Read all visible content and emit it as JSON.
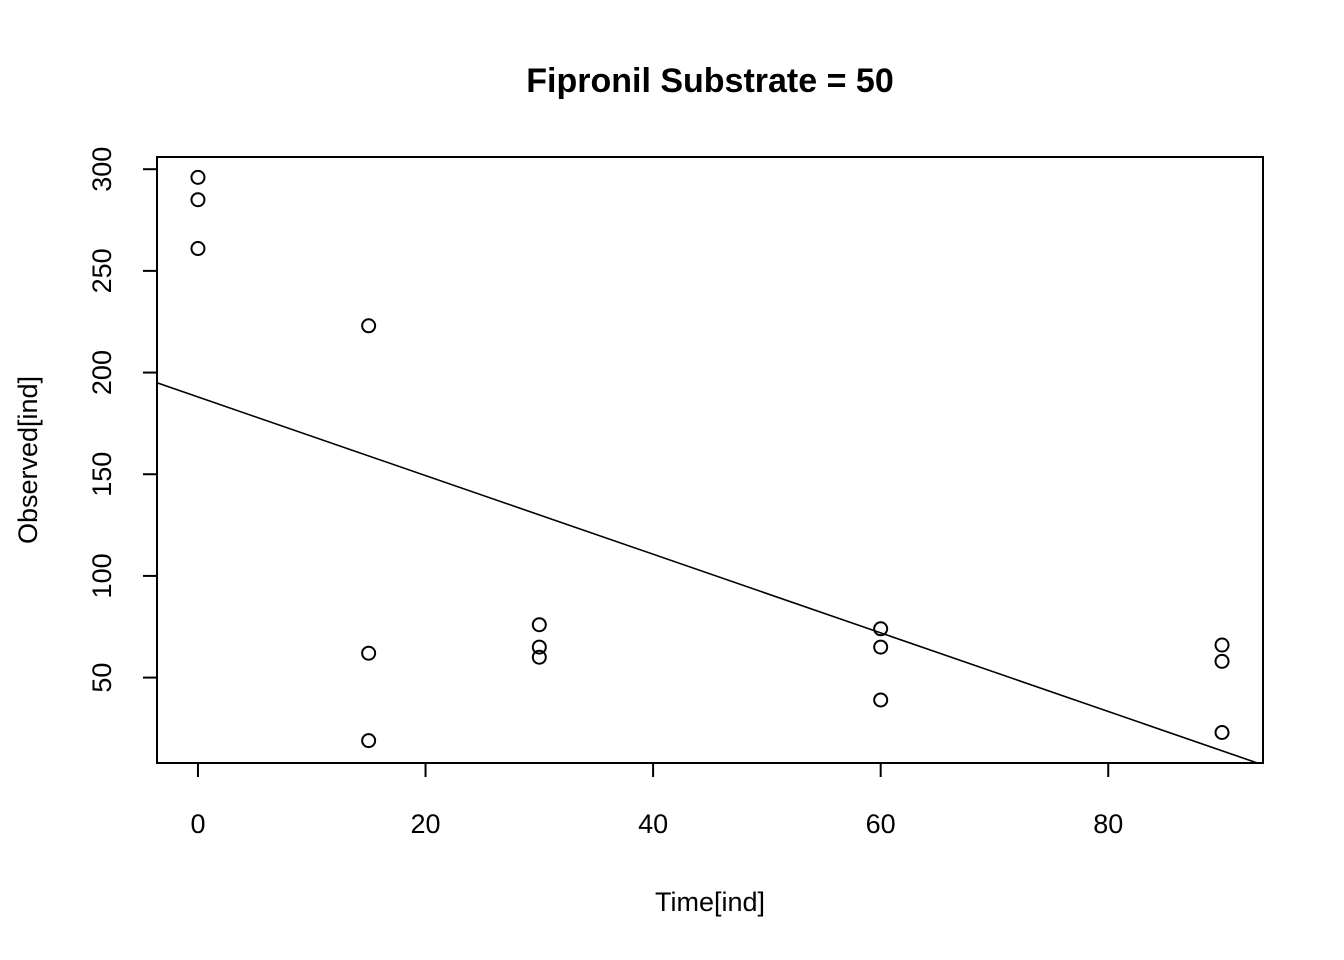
{
  "chart_data": {
    "type": "scatter",
    "title": "Fipronil Substrate = 50",
    "xlabel": "Time[ind]",
    "ylabel": "Observed[ind]",
    "xlim": [
      -3.6,
      93.6
    ],
    "ylim": [
      8,
      306
    ],
    "x_ticks": [
      0,
      20,
      40,
      60,
      80
    ],
    "y_ticks": [
      50,
      100,
      150,
      200,
      250,
      300
    ],
    "grid": false,
    "points": [
      {
        "x": 0,
        "y": 296
      },
      {
        "x": 0,
        "y": 285
      },
      {
        "x": 0,
        "y": 261
      },
      {
        "x": 15,
        "y": 223
      },
      {
        "x": 15,
        "y": 62
      },
      {
        "x": 15,
        "y": 19
      },
      {
        "x": 30,
        "y": 76
      },
      {
        "x": 30,
        "y": 65
      },
      {
        "x": 30,
        "y": 60
      },
      {
        "x": 60,
        "y": 74
      },
      {
        "x": 60,
        "y": 65
      },
      {
        "x": 60,
        "y": 39
      },
      {
        "x": 90,
        "y": 66
      },
      {
        "x": 90,
        "y": 58
      },
      {
        "x": 90,
        "y": 23
      }
    ],
    "fit_line": {
      "intercept": 188,
      "slope": -1.9333
    }
  }
}
